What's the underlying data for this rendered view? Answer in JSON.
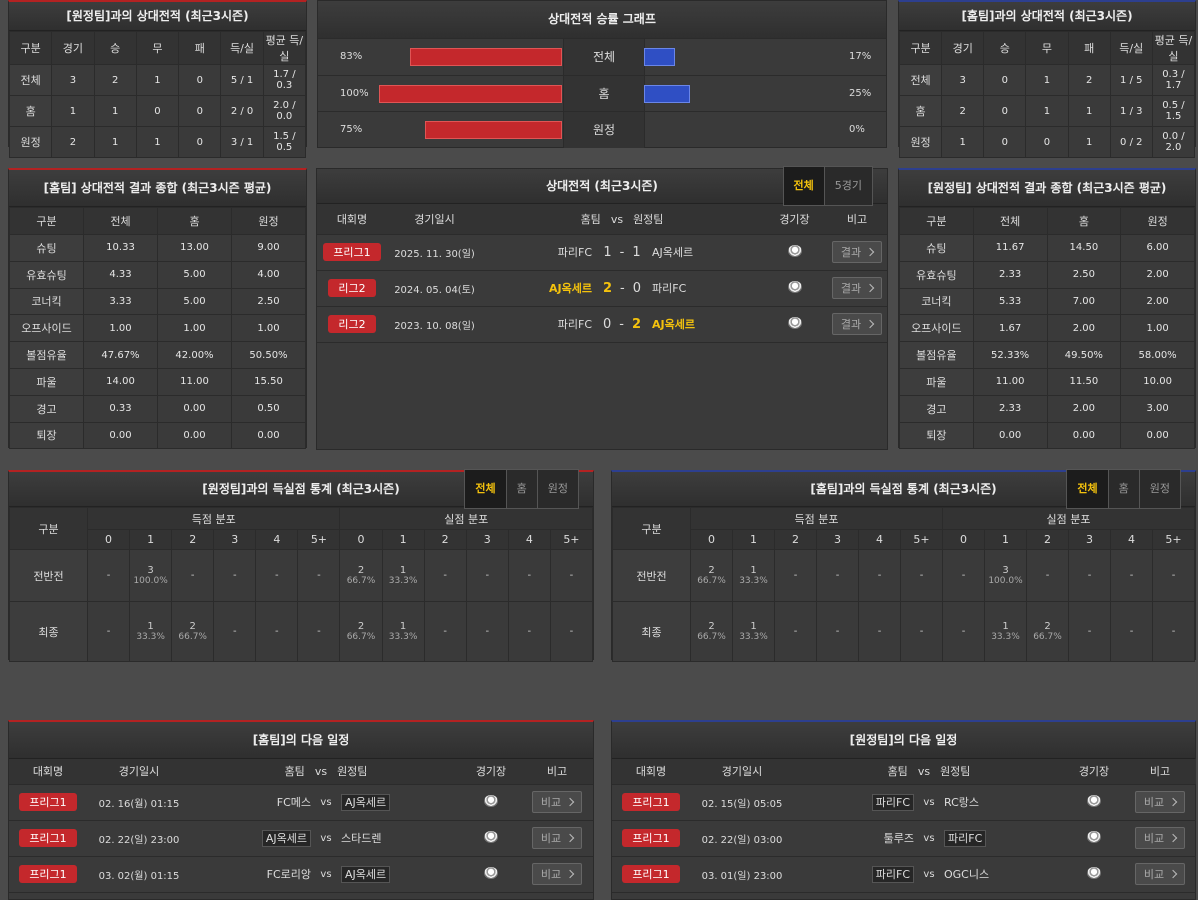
{
  "h2h_away": {
    "title": "[원정팀]과의 상대전적 (최근3시즌)",
    "header": [
      "구분",
      "경기",
      "승",
      "무",
      "패",
      "득/실",
      "평균 득/실"
    ],
    "rows": [
      [
        "전체",
        "3",
        "2",
        "1",
        "0",
        "5 / 1",
        "1.7 / 0.3"
      ],
      [
        "홈",
        "1",
        "1",
        "0",
        "0",
        "2 / 0",
        "2.0 / 0.0"
      ],
      [
        "원정",
        "2",
        "1",
        "1",
        "0",
        "3 / 1",
        "1.5 / 0.5"
      ]
    ]
  },
  "win_graph": {
    "title": "상대전적 승률 그래프",
    "categories": [
      "전체",
      "홈",
      "원정"
    ],
    "left_values": [
      83,
      100,
      75
    ],
    "left_labels": [
      "83%",
      "100%",
      "75%"
    ],
    "left_color": "#c4282c",
    "right_values": [
      17,
      25,
      0
    ],
    "right_labels": [
      "17%",
      "25%",
      "0%"
    ],
    "right_color": "#2f4fc4"
  },
  "h2h_home": {
    "title": "[홈팀]과의 상대전적 (최근3시즌)",
    "header": [
      "구분",
      "경기",
      "승",
      "무",
      "패",
      "득/실",
      "평균 득/실"
    ],
    "rows": [
      [
        "전체",
        "3",
        "0",
        "1",
        "2",
        "1 / 5",
        "0.3 / 1.7"
      ],
      [
        "홈",
        "2",
        "0",
        "1",
        "1",
        "1 / 3",
        "0.5 / 1.5"
      ],
      [
        "원정",
        "1",
        "0",
        "0",
        "1",
        "0 / 2",
        "0.0 / 2.0"
      ]
    ]
  },
  "summary_home": {
    "title": "[홈팀] 상대전적 결과 종합 (최근3시즌 평균)",
    "header": [
      "구분",
      "전체",
      "홈",
      "원정"
    ],
    "rows": [
      [
        "슈팅",
        "10.33",
        "13.00",
        "9.00"
      ],
      [
        "유효슈팅",
        "4.33",
        "5.00",
        "4.00"
      ],
      [
        "코너킥",
        "3.33",
        "5.00",
        "2.50"
      ],
      [
        "오프사이드",
        "1.00",
        "1.00",
        "1.00"
      ],
      [
        "볼점유율",
        "47.67%",
        "42.00%",
        "50.50%"
      ],
      [
        "파울",
        "14.00",
        "11.00",
        "15.50"
      ],
      [
        "경고",
        "0.33",
        "0.00",
        "0.50"
      ],
      [
        "퇴장",
        "0.00",
        "0.00",
        "0.00"
      ]
    ]
  },
  "summary_away": {
    "title": "[원정팀] 상대전적 결과 종합 (최근3시즌 평균)",
    "header": [
      "구분",
      "전체",
      "홈",
      "원정"
    ],
    "rows": [
      [
        "슈팅",
        "11.67",
        "14.50",
        "6.00"
      ],
      [
        "유효슈팅",
        "2.33",
        "2.50",
        "2.00"
      ],
      [
        "코너킥",
        "5.33",
        "7.00",
        "2.00"
      ],
      [
        "오프사이드",
        "1.67",
        "2.00",
        "1.00"
      ],
      [
        "볼점유율",
        "52.33%",
        "49.50%",
        "58.00%"
      ],
      [
        "파울",
        "11.00",
        "11.50",
        "10.00"
      ],
      [
        "경고",
        "2.33",
        "2.00",
        "3.00"
      ],
      [
        "퇴장",
        "0.00",
        "0.00",
        "0.00"
      ]
    ]
  },
  "matches": {
    "title": "상대전적 (최근3시즌)",
    "tabs": [
      "전체",
      "5경기"
    ],
    "header": [
      "대회명",
      "경기일시",
      "홈팀",
      "vs",
      "원정팀",
      "경기장",
      "비고"
    ],
    "separator": "-",
    "rows": [
      {
        "league": "프리그1",
        "date": "2025. 11. 30(일)",
        "home": "파리FC",
        "home_score": "1",
        "away_score": "1",
        "away": "AJ옥세르",
        "winner": null,
        "button": "결과"
      },
      {
        "league": "리그2",
        "date": "2024. 05. 04(토)",
        "home": "AJ옥세르",
        "home_score": "2",
        "away_score": "0",
        "away": "파리FC",
        "winner": "home",
        "button": "결과"
      },
      {
        "league": "리그2",
        "date": "2023. 10. 08(일)",
        "home": "파리FC",
        "home_score": "0",
        "away_score": "2",
        "away": "AJ옥세르",
        "winner": "away",
        "button": "결과"
      }
    ]
  },
  "goals_left": {
    "title": "[원정팀]과의 득실점 통계 (최근3시즌)",
    "tabs": [
      "전체",
      "홈",
      "원정"
    ],
    "label_header": "구분",
    "groups": [
      "득점 분포",
      "실점 분포"
    ],
    "buckets": [
      "0",
      "1",
      "2",
      "3",
      "4",
      "5+"
    ],
    "rows": [
      {
        "label": "전반전",
        "scored": [
          "-",
          {
            "n": "3",
            "pct": "100.0%"
          },
          "-",
          "-",
          "-",
          "-"
        ],
        "conceded": [
          {
            "n": "2",
            "pct": "66.7%"
          },
          {
            "n": "1",
            "pct": "33.3%"
          },
          "-",
          "-",
          "-",
          "-"
        ]
      },
      {
        "label": "최종",
        "scored": [
          "-",
          {
            "n": "1",
            "pct": "33.3%"
          },
          {
            "n": "2",
            "pct": "66.7%"
          },
          "-",
          "-",
          "-"
        ],
        "conceded": [
          {
            "n": "2",
            "pct": "66.7%"
          },
          {
            "n": "1",
            "pct": "33.3%"
          },
          "-",
          "-",
          "-",
          "-"
        ]
      }
    ]
  },
  "goals_right": {
    "title": "[홈팀]과의 득실점 통계 (최근3시즌)",
    "tabs": [
      "전체",
      "홈",
      "원정"
    ],
    "label_header": "구분",
    "groups": [
      "득점 분포",
      "실점 분포"
    ],
    "buckets": [
      "0",
      "1",
      "2",
      "3",
      "4",
      "5+"
    ],
    "rows": [
      {
        "label": "전반전",
        "scored": [
          {
            "n": "2",
            "pct": "66.7%"
          },
          {
            "n": "1",
            "pct": "33.3%"
          },
          "-",
          "-",
          "-",
          "-"
        ],
        "conceded": [
          "-",
          {
            "n": "3",
            "pct": "100.0%"
          },
          "-",
          "-",
          "-",
          "-"
        ]
      },
      {
        "label": "최종",
        "scored": [
          {
            "n": "2",
            "pct": "66.7%"
          },
          {
            "n": "1",
            "pct": "33.3%"
          },
          "-",
          "-",
          "-",
          "-"
        ],
        "conceded": [
          "-",
          {
            "n": "1",
            "pct": "33.3%"
          },
          {
            "n": "2",
            "pct": "66.7%"
          },
          "-",
          "-",
          "-"
        ]
      }
    ]
  },
  "next_home": {
    "title": "[홈팀]의 다음 일정",
    "header": [
      "대회명",
      "경기일시",
      "홈팀",
      "vs",
      "원정팀",
      "경기장",
      "비고"
    ],
    "rows": [
      {
        "league": "프리그1",
        "date": "02. 16(월) 01:15",
        "home": "FC메스",
        "vs": "vs",
        "away": "AJ옥세르",
        "focus": "away",
        "button": "비교"
      },
      {
        "league": "프리그1",
        "date": "02. 22(일) 23:00",
        "home": "AJ옥세르",
        "vs": "vs",
        "away": "스타드렌",
        "focus": "home",
        "button": "비교"
      },
      {
        "league": "프리그1",
        "date": "03. 02(월) 01:15",
        "home": "FC로리앙",
        "vs": "vs",
        "away": "AJ옥세르",
        "focus": "away",
        "button": "비교"
      }
    ]
  },
  "next_away": {
    "title": "[원정팀]의 다음 일정",
    "header": [
      "대회명",
      "경기일시",
      "홈팀",
      "vs",
      "원정팀",
      "경기장",
      "비고"
    ],
    "rows": [
      {
        "league": "프리그1",
        "date": "02. 15(일) 05:05",
        "home": "파리FC",
        "vs": "vs",
        "away": "RC랑스",
        "focus": "home",
        "button": "비교"
      },
      {
        "league": "프리그1",
        "date": "02. 22(일) 03:00",
        "home": "툴루즈",
        "vs": "vs",
        "away": "파리FC",
        "focus": "away",
        "button": "비교"
      },
      {
        "league": "프리그1",
        "date": "03. 01(일) 23:00",
        "home": "파리FC",
        "vs": "vs",
        "away": "OGC니스",
        "focus": "home",
        "button": "비교"
      }
    ]
  }
}
